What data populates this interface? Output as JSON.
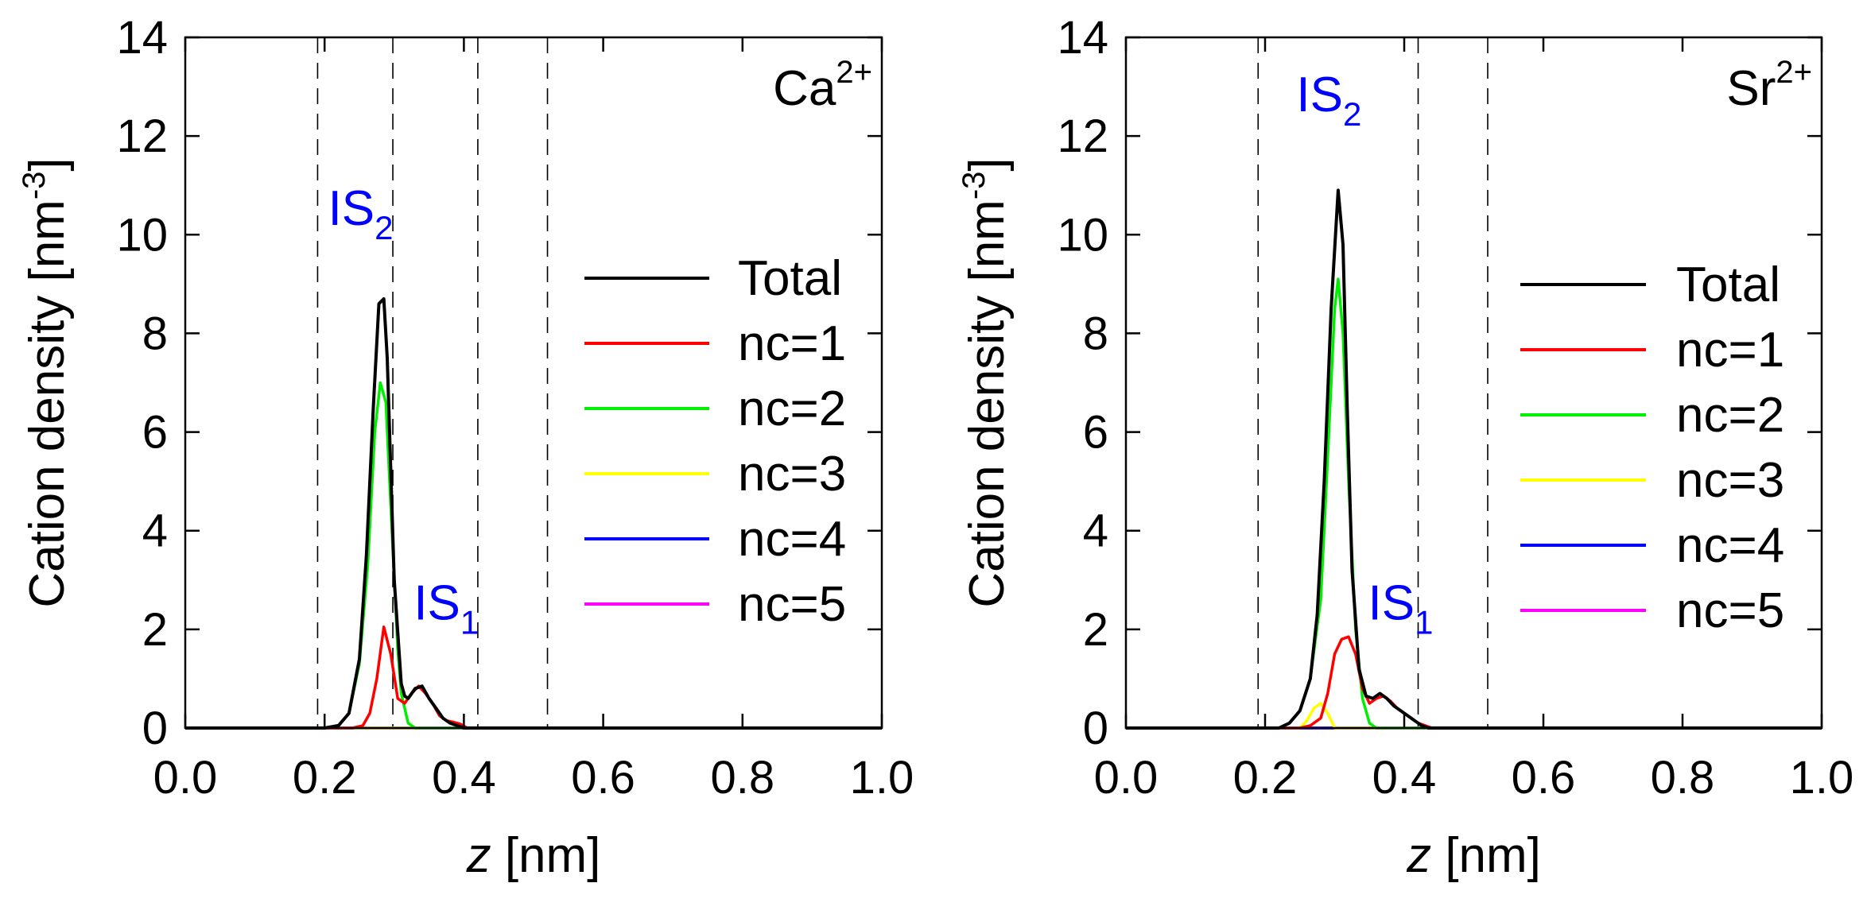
{
  "colors": {
    "total": "#000000",
    "nc1": "#ff0000",
    "nc2": "#00ee00",
    "nc3": "#ffff00",
    "nc4": "#0000ff",
    "nc5": "#ff00ff",
    "annotation": "#0000ff",
    "axes": "#000000"
  },
  "chart_data": [
    {
      "type": "line",
      "ion_base": "Ca",
      "ion_charge": "2+",
      "xlabel_italic": "z",
      "xlabel_rest": " [nm]",
      "ylabel": "Cation density [nm",
      "ylabel_exp": "-3",
      "ylabel_close": "]",
      "xlim": [
        0.0,
        1.0
      ],
      "ylim": [
        0,
        14
      ],
      "xticks": [
        0.0,
        0.2,
        0.4,
        0.6,
        0.8,
        1.0
      ],
      "xtick_labels": [
        "0.0",
        "0.2",
        "0.4",
        "0.6",
        "0.8",
        "1.0"
      ],
      "yticks": [
        0,
        2,
        4,
        6,
        8,
        10,
        12,
        14
      ],
      "ytick_labels": [
        "0",
        "2",
        "4",
        "6",
        "8",
        "10",
        "12",
        "14"
      ],
      "vlines": [
        0.19,
        0.298,
        0.42,
        0.52
      ],
      "legend_position": "center-right",
      "annotations": [
        {
          "base": "IS",
          "sub": "2",
          "x": 0.205,
          "y": 10.2
        },
        {
          "base": "IS",
          "sub": "1",
          "x": 0.328,
          "y": 2.2
        }
      ],
      "series": [
        {
          "name": "Total",
          "color_key": "total",
          "x": [
            0,
            0.2,
            0.22,
            0.235,
            0.25,
            0.26,
            0.27,
            0.278,
            0.285,
            0.29,
            0.3,
            0.31,
            0.315,
            0.32,
            0.33,
            0.34,
            0.35,
            0.36,
            0.37,
            0.38,
            0.39,
            0.4,
            0.42,
            1.0
          ],
          "y": [
            0,
            0,
            0.05,
            0.3,
            1.4,
            3.5,
            6.5,
            8.6,
            8.7,
            7.5,
            3.0,
            0.9,
            0.65,
            0.6,
            0.8,
            0.85,
            0.6,
            0.4,
            0.2,
            0.1,
            0.05,
            0,
            0,
            0
          ]
        },
        {
          "name": "nc=1",
          "color_key": "nc1",
          "x": [
            0,
            0.24,
            0.255,
            0.265,
            0.275,
            0.285,
            0.295,
            0.305,
            0.315,
            0.325,
            0.335,
            0.345,
            0.355,
            0.365,
            0.375,
            0.385,
            0.395,
            0.405,
            1.0
          ],
          "y": [
            0,
            0,
            0.05,
            0.3,
            1.0,
            2.05,
            1.5,
            0.6,
            0.5,
            0.7,
            0.85,
            0.7,
            0.5,
            0.25,
            0.15,
            0.12,
            0.08,
            0,
            0
          ]
        },
        {
          "name": "nc=2",
          "color_key": "nc2",
          "x": [
            0,
            0.2,
            0.22,
            0.235,
            0.25,
            0.262,
            0.272,
            0.28,
            0.288,
            0.296,
            0.305,
            0.31,
            0.32,
            0.33,
            1.0
          ],
          "y": [
            0,
            0,
            0.05,
            0.3,
            1.3,
            3.3,
            6.0,
            7.0,
            6.6,
            4.2,
            1.6,
            0.7,
            0.1,
            0,
            0
          ]
        },
        {
          "name": "nc=3",
          "color_key": "nc3",
          "x": [
            0,
            1.0
          ],
          "y": [
            0,
            0
          ]
        },
        {
          "name": "nc=4",
          "color_key": "nc4",
          "x": [
            0,
            1.0
          ],
          "y": [
            0,
            0
          ]
        },
        {
          "name": "nc=5",
          "color_key": "nc5",
          "x": [
            0,
            1.0
          ],
          "y": [
            0,
            0
          ]
        }
      ]
    },
    {
      "type": "line",
      "ion_base": "Sr",
      "ion_charge": "2+",
      "xlabel_italic": "z",
      "xlabel_rest": " [nm]",
      "ylabel": "Cation density [nm",
      "ylabel_exp": "-3",
      "ylabel_close": "]",
      "xlim": [
        0.0,
        1.0
      ],
      "ylim": [
        0,
        14
      ],
      "xticks": [
        0.0,
        0.2,
        0.4,
        0.6,
        0.8,
        1.0
      ],
      "xtick_labels": [
        "0.0",
        "0.2",
        "0.4",
        "0.6",
        "0.8",
        "1.0"
      ],
      "yticks": [
        0,
        2,
        4,
        6,
        8,
        10,
        12,
        14
      ],
      "ytick_labels": [
        "0",
        "2",
        "4",
        "6",
        "8",
        "10",
        "12",
        "14"
      ],
      "vlines": [
        0.19,
        0.42,
        0.52
      ],
      "legend_position": "center-right",
      "annotations": [
        {
          "base": "IS",
          "sub": "2",
          "x": 0.245,
          "y": 12.5
        },
        {
          "base": "IS",
          "sub": "1",
          "x": 0.348,
          "y": 2.2
        }
      ],
      "series": [
        {
          "name": "Total",
          "color_key": "total",
          "x": [
            0,
            0.22,
            0.235,
            0.25,
            0.265,
            0.275,
            0.285,
            0.295,
            0.305,
            0.312,
            0.318,
            0.325,
            0.335,
            0.345,
            0.355,
            0.365,
            0.375,
            0.385,
            0.395,
            0.405,
            0.415,
            0.425,
            0.435,
            1.0
          ],
          "y": [
            0,
            0,
            0.1,
            0.35,
            1.0,
            2.3,
            5.0,
            8.5,
            10.9,
            9.8,
            6.5,
            3.2,
            1.2,
            0.65,
            0.6,
            0.7,
            0.6,
            0.45,
            0.35,
            0.25,
            0.15,
            0.05,
            0,
            0
          ]
        },
        {
          "name": "nc=1",
          "color_key": "nc1",
          "x": [
            0,
            0.25,
            0.265,
            0.28,
            0.29,
            0.3,
            0.31,
            0.32,
            0.33,
            0.34,
            0.35,
            0.36,
            0.37,
            0.38,
            0.39,
            0.4,
            0.41,
            0.42,
            0.43,
            0.44,
            1.0
          ],
          "y": [
            0,
            0,
            0.05,
            0.2,
            0.7,
            1.5,
            1.8,
            1.85,
            1.5,
            0.8,
            0.5,
            0.6,
            0.65,
            0.55,
            0.4,
            0.3,
            0.2,
            0.1,
            0.05,
            0,
            0
          ]
        },
        {
          "name": "nc=2",
          "color_key": "nc2",
          "x": [
            0,
            0.22,
            0.235,
            0.25,
            0.265,
            0.28,
            0.29,
            0.3,
            0.305,
            0.312,
            0.32,
            0.33,
            0.34,
            0.35,
            0.36,
            1.0
          ],
          "y": [
            0,
            0,
            0.1,
            0.35,
            1.0,
            2.6,
            5.5,
            8.5,
            9.1,
            8.0,
            5.0,
            2.0,
            0.6,
            0.1,
            0,
            0
          ]
        },
        {
          "name": "nc=3",
          "color_key": "nc3",
          "x": [
            0,
            0.25,
            0.26,
            0.27,
            0.28,
            0.29,
            0.3,
            1.0
          ],
          "y": [
            0,
            0,
            0.15,
            0.4,
            0.5,
            0.3,
            0,
            0
          ]
        },
        {
          "name": "nc=4",
          "color_key": "nc4",
          "x": [
            0,
            1.0
          ],
          "y": [
            0,
            0
          ]
        },
        {
          "name": "nc=5",
          "color_key": "nc5",
          "x": [
            0,
            1.0
          ],
          "y": [
            0,
            0
          ]
        }
      ]
    }
  ]
}
